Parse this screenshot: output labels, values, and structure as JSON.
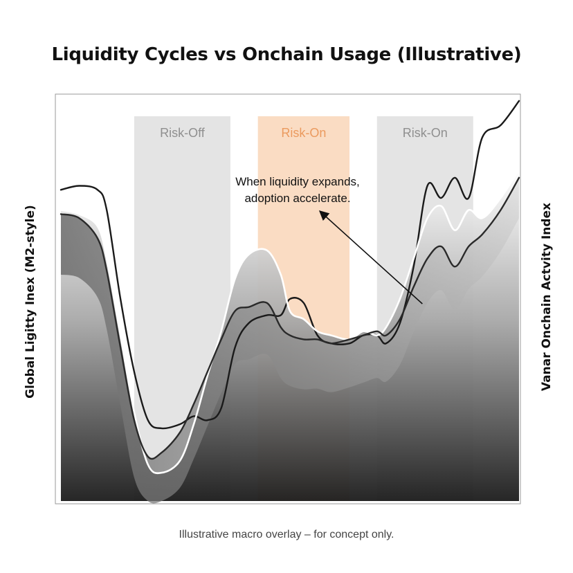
{
  "chart_data": {
    "type": "area",
    "title": "Liquidity Cycles vs Onchain Usage (Illustrative)",
    "ylabel_left": "Global Ligitty Inex (M2-style)",
    "ylabel_right": "Vanar Onchain Actvity Index",
    "caption": "Illustrative macro overlay – for concept only.",
    "grid": false,
    "legend": "none",
    "x": [
      0,
      0.04,
      0.08,
      0.1,
      0.13,
      0.16,
      0.19,
      0.22,
      0.26,
      0.29,
      0.32,
      0.35,
      0.38,
      0.41,
      0.45,
      0.48,
      0.5,
      0.53,
      0.56,
      0.59,
      0.63,
      0.66,
      0.69,
      0.71,
      0.74,
      0.77,
      0.8,
      0.83,
      0.86,
      0.89,
      0.92,
      0.96,
      1.0
    ],
    "xlim": [
      0,
      1
    ],
    "ylim": [
      0,
      1
    ],
    "series": [
      {
        "values": [
          0.77,
          0.78,
          0.77,
          0.72,
          0.5,
          0.32,
          0.2,
          0.18,
          0.19,
          0.21,
          0.2,
          0.23,
          0.38,
          0.44,
          0.46,
          0.46,
          0.5,
          0.49,
          0.41,
          0.39,
          0.39,
          0.41,
          0.41,
          0.39,
          0.44,
          0.58,
          0.78,
          0.75,
          0.8,
          0.75,
          0.9,
          0.93,
          0.99
        ],
        "color": "#1a1a1a"
      },
      {
        "values": [
          0.72,
          0.71,
          0.68,
          0.6,
          0.41,
          0.22,
          0.09,
          0.07,
          0.1,
          0.19,
          0.31,
          0.42,
          0.55,
          0.61,
          0.62,
          0.56,
          0.47,
          0.45,
          0.42,
          0.41,
          0.4,
          0.42,
          0.41,
          0.43,
          0.5,
          0.6,
          0.7,
          0.73,
          0.67,
          0.72,
          0.7,
          0.75,
          0.82
        ],
        "color": "#ffffff"
      },
      {
        "values": [
          0.71,
          0.7,
          0.65,
          0.57,
          0.38,
          0.2,
          0.11,
          0.12,
          0.17,
          0.24,
          0.32,
          0.4,
          0.47,
          0.48,
          0.49,
          0.43,
          0.41,
          0.4,
          0.4,
          0.39,
          0.4,
          0.41,
          0.42,
          0.41,
          0.45,
          0.53,
          0.6,
          0.63,
          0.58,
          0.63,
          0.66,
          0.72,
          0.8
        ],
        "color": "#2a2a2a"
      }
    ],
    "regions": [
      {
        "label": "Risk-Off",
        "x_start": 0.16,
        "x_end": 0.37,
        "color": "#e4e4e4",
        "label_color": "#8f8f8f"
      },
      {
        "label": "Risk-On",
        "x_start": 0.43,
        "x_end": 0.63,
        "color": "#fadcc3",
        "label_color": "#eb9a5e"
      },
      {
        "label": "Risk-On",
        "x_start": 0.69,
        "x_end": 0.9,
        "color": "#e4e4e4",
        "label_color": "#8f8f8f"
      }
    ],
    "annotation": {
      "lines": [
        "When liquidity expands,",
        "adoption accelerate."
      ],
      "target_x": 0.57,
      "target_y": 0.5
    }
  }
}
